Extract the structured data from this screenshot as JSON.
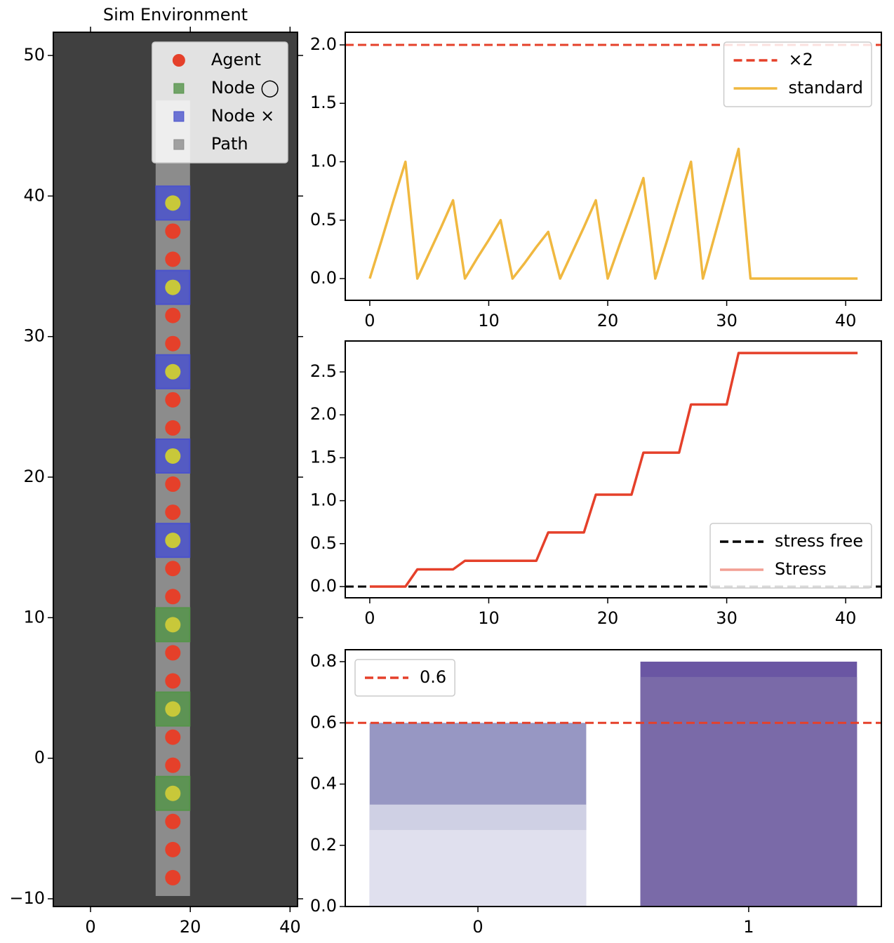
{
  "chart_data": [
    {
      "type": "scatter",
      "title": "Sim Environment",
      "background": "#404040",
      "mirror_ticks": true,
      "xlim": [
        -7.46,
        41.5
      ],
      "ylim": [
        -10.55,
        51.65
      ],
      "xticks": [
        0,
        20,
        40
      ],
      "yticks": [
        {
          "value": -10,
          "label": "−10"
        },
        0,
        10,
        20,
        30,
        40,
        50
      ],
      "legend": "upper right",
      "series": [
        {
          "name": "Agent",
          "color": "#e5402a",
          "marker": "circle",
          "x": [
            16.5,
            16.5,
            16.5,
            16.5,
            16.5,
            16.5,
            16.5,
            16.5,
            16.5,
            16.5,
            16.5,
            16.5,
            16.5,
            16.5,
            16.5,
            16.5,
            16.5
          ],
          "y": [
            -8.5,
            -6.5,
            -4.5,
            -0.5,
            1.5,
            5.5,
            7.5,
            11.5,
            13.5,
            17.5,
            19.5,
            23.5,
            25.5,
            29.5,
            31.5,
            35.5,
            37.5
          ]
        },
        {
          "name": "Node ◯",
          "color": "#55944a",
          "marker": "square",
          "inner_color": "#c8c83a",
          "x": [
            16.5,
            16.5,
            16.5
          ],
          "y": [
            -2.5,
            3.5,
            9.5
          ]
        },
        {
          "name": "Node ×",
          "color": "#4a52cc",
          "marker": "square",
          "inner_color": "#c8c83a",
          "x": [
            16.5,
            16.5,
            16.5,
            16.5,
            16.5
          ],
          "y": [
            15.5,
            21.5,
            27.5,
            33.5,
            39.5
          ]
        },
        {
          "name": "Path",
          "color": "#8c8c8c",
          "marker": "band",
          "x": [
            16.5,
            16.5
          ],
          "y": [
            -9.8,
            46.8
          ]
        }
      ]
    },
    {
      "type": "line",
      "xlim": [
        -2.06,
        43.0
      ],
      "ylim": [
        -0.186,
        2.108
      ],
      "xticks": [
        0,
        10,
        20,
        30,
        40
      ],
      "yticks": [
        {
          "value": 0,
          "label": "0.0"
        },
        {
          "value": 0.5,
          "label": "0.5"
        },
        {
          "value": 1,
          "label": "1.0"
        },
        {
          "value": 1.5,
          "label": "1.5"
        },
        {
          "value": 2,
          "label": "2.0"
        }
      ],
      "legend": "upper right",
      "hlines": [
        {
          "name": "×2",
          "y": 2.0,
          "color": "#e5402a",
          "dashed": true
        }
      ],
      "x": [
        0,
        1,
        2,
        3,
        4,
        5,
        6,
        7,
        8,
        9,
        10,
        11,
        12,
        13,
        14,
        15,
        16,
        17,
        18,
        19,
        20,
        21,
        22,
        23,
        24,
        25,
        26,
        27,
        28,
        29,
        30,
        31,
        32,
        33,
        34,
        35,
        36,
        37,
        38,
        39,
        40,
        41
      ],
      "series": [
        {
          "name": "standard",
          "color": "#f0b840",
          "values": [
            0,
            0.33,
            0.67,
            1.0,
            0,
            0.22,
            0.44,
            0.67,
            0,
            0.17,
            0.33,
            0.5,
            0,
            0.13,
            0.27,
            0.4,
            0,
            0.22,
            0.44,
            0.67,
            0,
            0.29,
            0.57,
            0.86,
            0,
            0.33,
            0.67,
            1.0,
            0,
            0.37,
            0.74,
            1.11,
            0,
            0,
            0,
            0,
            0,
            0,
            0,
            0,
            0,
            0
          ]
        }
      ]
    },
    {
      "type": "line",
      "xlim": [
        -2.06,
        43.0
      ],
      "ylim": [
        -0.131,
        2.86
      ],
      "xticks": [
        0,
        10,
        20,
        30,
        40
      ],
      "yticks": [
        {
          "value": 0,
          "label": "0.0"
        },
        {
          "value": 0.5,
          "label": "0.5"
        },
        {
          "value": 1,
          "label": "1.0"
        },
        {
          "value": 1.5,
          "label": "1.5"
        },
        {
          "value": 2,
          "label": "2.0"
        },
        {
          "value": 2.5,
          "label": "2.5"
        }
      ],
      "legend": "lower right",
      "hlines": [
        {
          "name": "stress free",
          "y": 0,
          "color": "#000000",
          "dashed": true
        }
      ],
      "x": [
        0,
        1,
        2,
        3,
        4,
        5,
        6,
        7,
        8,
        9,
        10,
        11,
        12,
        13,
        14,
        15,
        16,
        17,
        18,
        19,
        20,
        21,
        22,
        23,
        24,
        25,
        26,
        27,
        28,
        29,
        30,
        31,
        32,
        33,
        34,
        35,
        36,
        37,
        38,
        39,
        40,
        41
      ],
      "series": [
        {
          "name": "Stress",
          "color": "#e5402a",
          "legend_alpha": 0.5,
          "values": [
            0,
            0,
            0,
            0,
            0.2,
            0.2,
            0.2,
            0.2,
            0.3,
            0.3,
            0.3,
            0.3,
            0.3,
            0.3,
            0.3,
            0.63,
            0.63,
            0.63,
            0.63,
            1.07,
            1.07,
            1.07,
            1.07,
            1.56,
            1.56,
            1.56,
            1.56,
            2.12,
            2.12,
            2.12,
            2.12,
            2.72,
            2.72,
            2.72,
            2.72,
            2.72,
            2.72,
            2.72,
            2.72,
            2.72,
            2.72,
            2.72
          ]
        }
      ]
    },
    {
      "type": "bar",
      "overlay": true,
      "xlim": [
        -0.49,
        1.49
      ],
      "ylim": [
        0,
        0.839
      ],
      "categories": [
        "0",
        "1"
      ],
      "yticks": [
        {
          "value": 0,
          "label": "0.0"
        },
        {
          "value": 0.2,
          "label": "0.2"
        },
        {
          "value": 0.4,
          "label": "0.4"
        },
        {
          "value": 0.6,
          "label": "0.6"
        },
        {
          "value": 0.8,
          "label": "0.8"
        }
      ],
      "legend": "upper left",
      "hlines": [
        {
          "name": "0.6",
          "y": 0.6,
          "color": "#e5402a",
          "dashed": true
        }
      ],
      "series": [
        {
          "values": [
            0.6,
            0.8
          ],
          "colors": [
            "#9797c3",
            "#6a56a3"
          ]
        },
        {
          "values": [
            0.333,
            0.75
          ],
          "colors": [
            "#cfd0e4",
            "#7a6aa8"
          ]
        },
        {
          "values": [
            0.25,
            null
          ],
          "colors": [
            "#e0e0ee",
            "#7a6aa8"
          ]
        }
      ]
    }
  ]
}
